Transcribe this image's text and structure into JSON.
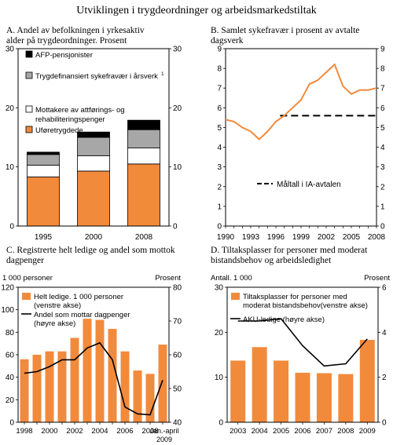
{
  "figure_title": "Utviklingen i trygdeordninger og arbeidsmarkedstiltak",
  "colors": {
    "orange": "#f28a3c",
    "gray": "#a7a7a7",
    "white": "#ffffff",
    "black": "#000000"
  },
  "chart_data": [
    {
      "id": "A",
      "type": "bar",
      "stacked": true,
      "title": "A. Andel av befolkningen i yrkesaktiv alder på trygdeordninger. Prosent",
      "title_lines": [
        "A. Andel av befolkningen i yrkesaktiv",
        "alder på trygdeordninger. Prosent"
      ],
      "categories": [
        "1995",
        "2000",
        "2008"
      ],
      "ylim": [
        0,
        30
      ],
      "yticks": [
        0,
        10,
        20,
        30
      ],
      "series": [
        {
          "name": "Uføretrygdede",
          "color": "#f28a3c",
          "values": [
            8.3,
            9.3,
            10.5
          ]
        },
        {
          "name": "Mottakere av attførings- og rehabiliteringspenger",
          "color": "#ffffff",
          "values": [
            2.0,
            2.6,
            2.7
          ]
        },
        {
          "name": "Trygdefinansiert sykefravær i årsverk",
          "color": "#a7a7a7",
          "values": [
            1.8,
            3.1,
            3.1
          ]
        },
        {
          "name": "AFP-pensjonister",
          "color": "#000000",
          "values": [
            0.4,
            0.9,
            1.6
          ]
        }
      ],
      "legend": [
        {
          "lines": [
            "AFP-pensjonister"
          ],
          "color": "#000000"
        },
        {
          "lines": [
            "Trygdefinansiert sykefravær i årsverk",
            "1"
          ],
          "color": "#a7a7a7"
        },
        {
          "lines": [
            "Mottakere av attførings-  og",
            "rehabiliteringspenger"
          ],
          "color": "#ffffff"
        },
        {
          "lines": [
            "Uføretrygdede"
          ],
          "color": "#f28a3c"
        }
      ]
    },
    {
      "id": "B",
      "type": "line",
      "title": "B. Samlet sykefravær i prosent av avtalte dagsverk",
      "title_lines": [
        "B. Samlet sykefravær i prosent av avtalte",
        "dagsverk"
      ],
      "xlim": [
        1990,
        2008
      ],
      "xticks": [
        1990,
        1993,
        1996,
        1999,
        2002,
        2005,
        2008
      ],
      "ylim": [
        0,
        9
      ],
      "yticks": [
        0,
        1,
        2,
        3,
        4,
        5,
        6,
        7,
        8,
        9
      ],
      "series": [
        {
          "name": "Samlet sykefravær",
          "color": "#f28a3c",
          "x": [
            1990,
            1991,
            1992,
            1993,
            1994,
            1995,
            1996,
            1997,
            1998,
            1999,
            2000,
            2001,
            2002,
            2003,
            2004,
            2005,
            2006,
            2007,
            2008
          ],
          "y": [
            5.4,
            5.3,
            5.0,
            4.8,
            4.4,
            4.8,
            5.3,
            5.6,
            6.0,
            6.4,
            7.2,
            7.4,
            7.8,
            8.2,
            7.1,
            6.7,
            6.9,
            6.9,
            7.0
          ]
        }
      ],
      "target": {
        "label": "Måltall i IA-avtalen",
        "x": [
          1996.5,
          2008
        ],
        "y": 5.6
      }
    },
    {
      "id": "C",
      "type": "bar",
      "title": "C. Registrerte helt ledige og andel som mottok dagpenger",
      "title_lines": [
        "C. Registrerte helt ledige og andel som mottok",
        "dagpenger"
      ],
      "left_axis_label": "1 000 personer",
      "right_axis_label": "Prosent",
      "categories": [
        "1998",
        "1999",
        "2000",
        "2001",
        "2002",
        "2003",
        "2004",
        "2005",
        "2006",
        "2007",
        "2008",
        "Jan.-april 2009"
      ],
      "tick_labels": [
        "1998",
        "",
        "2000",
        "",
        "2002",
        "",
        "2004",
        "",
        "2006",
        "",
        "2008",
        "Jan.-april 2009"
      ],
      "tick_label_last_lines": [
        "Jan.-april",
        "2009"
      ],
      "ylim_left": [
        0,
        120
      ],
      "yticks_left": [
        0,
        20,
        40,
        60,
        80,
        100,
        120
      ],
      "ylim_right": [
        40,
        80
      ],
      "yticks_right": [
        40,
        50,
        60,
        70,
        80
      ],
      "bars": {
        "name": "Helt ledige. 1 000 personer (venstre akse)",
        "color": "#f28a3c",
        "values": [
          56,
          60,
          63,
          63,
          75,
          92,
          91,
          83,
          63,
          46,
          43,
          69
        ]
      },
      "line": {
        "name": "Andel som mottar dagpenger (høyre akse)",
        "color": "#000000",
        "values": [
          54.5,
          55.0,
          56.5,
          58.5,
          58.5,
          62.0,
          63.5,
          58.5,
          44.5,
          42.5,
          42.2,
          52.5
        ]
      },
      "legend": [
        {
          "kind": "bar",
          "lines": [
            "Helt ledige. 1 000 personer",
            "(venstre akse)"
          ],
          "color": "#f28a3c"
        },
        {
          "kind": "line",
          "lines": [
            "Andel som mottar dagpenger",
            "(høyre akse)"
          ],
          "color": "#000000"
        }
      ]
    },
    {
      "id": "D",
      "type": "bar",
      "title": "D. Tiltaksplasser for personer med moderat bistandsbehov og arbeidsledighet",
      "title_lines": [
        "D. Tiltaksplasser for personer med moderat",
        "bistandsbehov og arbeidsledighet"
      ],
      "left_axis_label": "Antall. 1 000",
      "right_axis_label": "Prosent",
      "categories": [
        "2003",
        "2004",
        "2005",
        "2006",
        "2007",
        "2008",
        "2009"
      ],
      "ylim_left": [
        0,
        30
      ],
      "yticks_left": [
        0,
        10,
        20,
        30
      ],
      "ylim_right": [
        0,
        6
      ],
      "yticks_right": [
        0,
        2,
        4,
        6
      ],
      "bars": {
        "name": "Tiltaksplasser for personer med moderat bistandsbehov(venstre akse)",
        "color": "#f28a3c",
        "values": [
          13.7,
          16.7,
          13.7,
          11.0,
          10.9,
          10.7,
          18.3
        ]
      },
      "line": {
        "name": "AKU-ledige (høyre akse)",
        "color": "#000000",
        "values": [
          4.5,
          4.5,
          4.6,
          3.4,
          2.5,
          2.6,
          3.7
        ]
      },
      "legend": [
        {
          "kind": "bar",
          "lines": [
            "Tiltaksplasser for personer med",
            "moderat bistandsbehov(venstre akse)"
          ],
          "color": "#f28a3c"
        },
        {
          "kind": "line",
          "lines": [
            "AKU-ledige (høyre akse)"
          ],
          "color": "#000000"
        }
      ]
    }
  ]
}
